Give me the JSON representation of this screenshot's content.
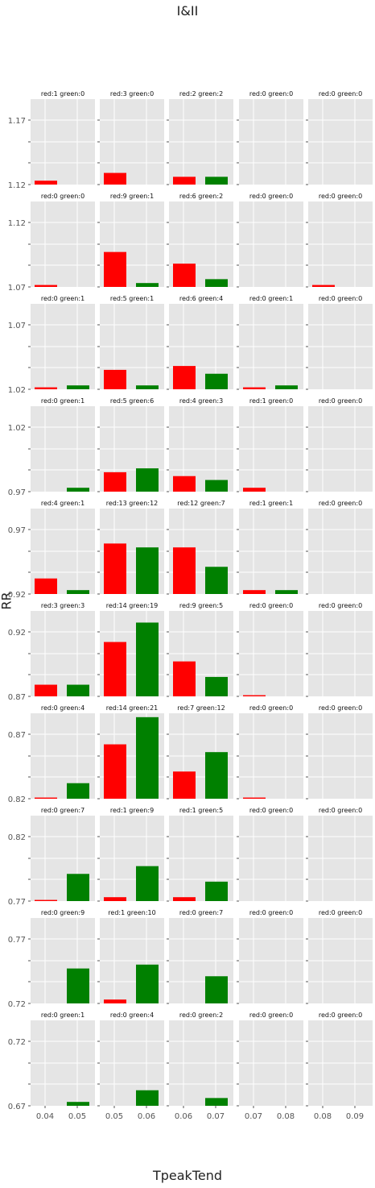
{
  "title": "I&II",
  "xlabel": "TpeakTend",
  "ylabel": "RR",
  "colors": {
    "red": "#ff0000",
    "green": "#008000",
    "panel_bg": "#e5e5e5",
    "grid": "#ffffff",
    "text": "#555555"
  },
  "chart_data": {
    "type": "bar",
    "layout": "grid of small multiples, 10 rows x 5 columns, shared y-axis per row, shared x-axis per column",
    "series": [
      {
        "name": "red",
        "color": "#ff0000"
      },
      {
        "name": "green",
        "color": "#008000"
      }
    ],
    "columns": [
      {
        "xticks": [
          "0.04",
          "0.05"
        ]
      },
      {
        "xticks": [
          "0.05",
          "0.06"
        ]
      },
      {
        "xticks": [
          "0.06",
          "0.07"
        ]
      },
      {
        "xticks": [
          "0.07",
          "0.08"
        ]
      },
      {
        "xticks": [
          "0.08",
          "0.09"
        ]
      }
    ],
    "rows": [
      {
        "ytick_labels": [
          "1.17",
          "1.12"
        ],
        "panels": [
          {
            "title": "red:1 green:0",
            "red": 1,
            "green": 0
          },
          {
            "title": "red:3 green:0",
            "red": 3,
            "green": 0
          },
          {
            "title": "red:2 green:2",
            "red": 2,
            "green": 2
          },
          {
            "title": "red:0 green:0",
            "red": 0,
            "green": 0
          },
          {
            "title": "red:0 green:0",
            "red": 0,
            "green": 0
          }
        ]
      },
      {
        "ytick_labels": [
          "1.12",
          "1.07"
        ],
        "panels": [
          {
            "title": "red:0 green:0",
            "red": 0.5,
            "green": 0
          },
          {
            "title": "red:9 green:1",
            "red": 9,
            "green": 1
          },
          {
            "title": "red:6 green:2",
            "red": 6,
            "green": 2
          },
          {
            "title": "red:0 green:0",
            "red": 0,
            "green": 0
          },
          {
            "title": "red:0 green:0",
            "red": 0.5,
            "green": 0
          }
        ]
      },
      {
        "ytick_labels": [
          "1.07",
          "1.02"
        ],
        "panels": [
          {
            "title": "red:0 green:1",
            "red": 0.5,
            "green": 1
          },
          {
            "title": "red:5 green:1",
            "red": 5,
            "green": 1
          },
          {
            "title": "red:6 green:4",
            "red": 6,
            "green": 4
          },
          {
            "title": "red:0 green:1",
            "red": 0.5,
            "green": 1
          },
          {
            "title": "red:0 green:0",
            "red": 0,
            "green": 0
          }
        ]
      },
      {
        "ytick_labels": [
          "1.02",
          "0.97"
        ],
        "panels": [
          {
            "title": "red:0 green:1",
            "red": 0,
            "green": 1
          },
          {
            "title": "red:5 green:6",
            "red": 5,
            "green": 6
          },
          {
            "title": "red:4 green:3",
            "red": 4,
            "green": 3
          },
          {
            "title": "red:1 green:0",
            "red": 1,
            "green": 0
          },
          {
            "title": "red:0 green:0",
            "red": 0,
            "green": 0
          }
        ]
      },
      {
        "ytick_labels": [
          "0.97",
          "0.92"
        ],
        "panels": [
          {
            "title": "red:4 green:1",
            "red": 4,
            "green": 1
          },
          {
            "title": "red:13 green:12",
            "red": 13,
            "green": 12
          },
          {
            "title": "red:12 green:7",
            "red": 12,
            "green": 7
          },
          {
            "title": "red:1 green:1",
            "red": 1,
            "green": 1
          },
          {
            "title": "red:0 green:0",
            "red": 0,
            "green": 0
          }
        ]
      },
      {
        "ytick_labels": [
          "0.92",
          "0.87"
        ],
        "panels": [
          {
            "title": "red:3 green:3",
            "red": 3,
            "green": 3
          },
          {
            "title": "red:14 green:19",
            "red": 14,
            "green": 19
          },
          {
            "title": "red:9 green:5",
            "red": 9,
            "green": 5
          },
          {
            "title": "red:0 green:0",
            "red": 0.3,
            "green": 0
          },
          {
            "title": "red:0 green:0",
            "red": 0,
            "green": 0
          }
        ]
      },
      {
        "ytick_labels": [
          "0.87",
          "0.82"
        ],
        "panels": [
          {
            "title": "red:0 green:4",
            "red": 0.3,
            "green": 4
          },
          {
            "title": "red:14 green:21",
            "red": 14,
            "green": 21
          },
          {
            "title": "red:7 green:12",
            "red": 7,
            "green": 12
          },
          {
            "title": "red:0 green:0",
            "red": 0.3,
            "green": 0
          },
          {
            "title": "red:0 green:0",
            "red": 0,
            "green": 0
          }
        ]
      },
      {
        "ytick_labels": [
          "0.82",
          "0.77"
        ],
        "panels": [
          {
            "title": "red:0 green:7",
            "red": 0.3,
            "green": 7
          },
          {
            "title": "red:1 green:9",
            "red": 1,
            "green": 9
          },
          {
            "title": "red:1 green:5",
            "red": 1,
            "green": 5
          },
          {
            "title": "red:0 green:0",
            "red": 0,
            "green": 0
          },
          {
            "title": "red:0 green:0",
            "red": 0,
            "green": 0
          }
        ]
      },
      {
        "ytick_labels": [
          "0.77",
          "0.72"
        ],
        "panels": [
          {
            "title": "red:0 green:9",
            "red": 0,
            "green": 9
          },
          {
            "title": "red:1 green:10",
            "red": 1,
            "green": 10
          },
          {
            "title": "red:0 green:7",
            "red": 0,
            "green": 7
          },
          {
            "title": "red:0 green:0",
            "red": 0,
            "green": 0
          },
          {
            "title": "red:0 green:0",
            "red": 0,
            "green": 0
          }
        ]
      },
      {
        "ytick_labels": [
          "0.72",
          "0.67"
        ],
        "panels": [
          {
            "title": "red:0 green:1",
            "red": 0,
            "green": 1
          },
          {
            "title": "red:0 green:4",
            "red": 0,
            "green": 4
          },
          {
            "title": "red:0 green:2",
            "red": 0,
            "green": 2
          },
          {
            "title": "red:0 green:0",
            "red": 0,
            "green": 0
          },
          {
            "title": "red:0 green:0",
            "red": 0,
            "green": 0
          }
        ]
      }
    ]
  }
}
